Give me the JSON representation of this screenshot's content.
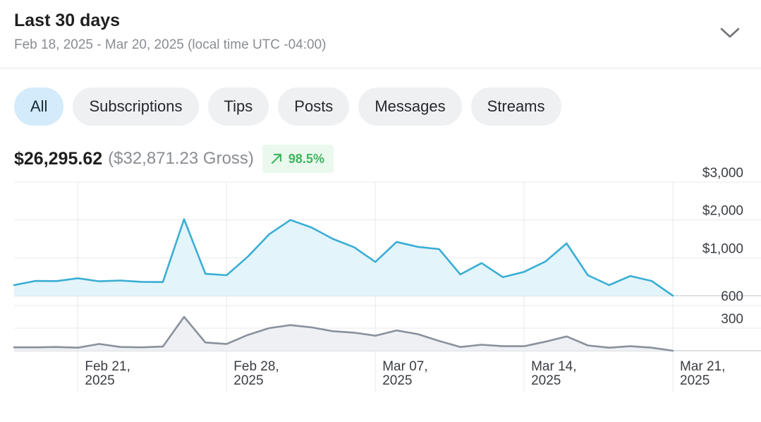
{
  "header": {
    "title": "Last 30 days",
    "subtitle": "Feb 18, 2025 - Mar 20, 2025 (local time UTC -04:00)"
  },
  "tabs": [
    {
      "label": "All",
      "active": true
    },
    {
      "label": "Subscriptions",
      "active": false
    },
    {
      "label": "Tips",
      "active": false
    },
    {
      "label": "Posts",
      "active": false
    },
    {
      "label": "Messages",
      "active": false
    },
    {
      "label": "Streams",
      "active": false
    }
  ],
  "summary": {
    "net": "$26,295.62",
    "gross": "($32,871.23 Gross)",
    "change": "98.5%"
  },
  "colors": {
    "earnings_line": "#3aaed4",
    "earnings_fill": "#e3f4fb",
    "count_line": "#8a919c",
    "count_fill": "#eef0f3",
    "grid": "#e8eaed",
    "badge_text": "#3fb65f"
  },
  "chart_data": [
    {
      "type": "area",
      "x": [
        "Feb 18",
        "Feb 19",
        "Feb 20",
        "Feb 21",
        "Feb 22",
        "Feb 23",
        "Feb 24",
        "Feb 25",
        "Feb 26",
        "Feb 27",
        "Feb 28",
        "Mar 01",
        "Mar 02",
        "Mar 03",
        "Mar 04",
        "Mar 05",
        "Mar 06",
        "Mar 07",
        "Mar 08",
        "Mar 09",
        "Mar 10",
        "Mar 11",
        "Mar 12",
        "Mar 13",
        "Mar 14",
        "Mar 15",
        "Mar 16",
        "Mar 17",
        "Mar 18",
        "Mar 19",
        "Mar 20",
        "Mar 21"
      ],
      "series": [
        {
          "values": [
            280,
            390,
            385,
            460,
            380,
            400,
            365,
            360,
            2020,
            580,
            540,
            1030,
            1620,
            2000,
            1800,
            1500,
            1280,
            890,
            1420,
            1290,
            1230,
            560,
            860,
            490,
            630,
            900,
            1380,
            540,
            280,
            520,
            390,
            0
          ]
        }
      ],
      "yticks": [
        "$1,000",
        "$2,000",
        "$3,000"
      ],
      "ylim": [
        0,
        3000
      ],
      "xticks": [
        {
          "date": "Feb 21",
          "line1": "Feb 21,",
          "line2": "2025"
        },
        {
          "date": "Feb 28",
          "line1": "Feb 28,",
          "line2": "2025"
        },
        {
          "date": "Mar 07",
          "line1": "Mar 07,",
          "line2": "2025"
        },
        {
          "date": "Mar 14",
          "line1": "Mar 14,",
          "line2": "2025"
        },
        {
          "date": "Mar 21",
          "line1": "Mar 21,",
          "line2": "2025"
        }
      ],
      "grid": true
    },
    {
      "type": "area",
      "x": [
        "Feb 18",
        "Feb 19",
        "Feb 20",
        "Feb 21",
        "Feb 22",
        "Feb 23",
        "Feb 24",
        "Feb 25",
        "Feb 26",
        "Feb 27",
        "Feb 28",
        "Mar 01",
        "Mar 02",
        "Mar 03",
        "Mar 04",
        "Mar 05",
        "Mar 06",
        "Mar 07",
        "Mar 08",
        "Mar 09",
        "Mar 10",
        "Mar 11",
        "Mar 12",
        "Mar 13",
        "Mar 14",
        "Mar 15",
        "Mar 16",
        "Mar 17",
        "Mar 18",
        "Mar 19",
        "Mar 20",
        "Mar 21"
      ],
      "series": [
        {
          "values": [
            45,
            45,
            50,
            40,
            90,
            50,
            45,
            55,
            450,
            110,
            90,
            210,
            300,
            340,
            310,
            260,
            240,
            200,
            270,
            220,
            130,
            50,
            80,
            60,
            60,
            120,
            190,
            70,
            40,
            60,
            40,
            0
          ]
        }
      ],
      "yticks": [
        "300",
        "600"
      ],
      "ylim": [
        0,
        600
      ],
      "grid": true
    }
  ]
}
